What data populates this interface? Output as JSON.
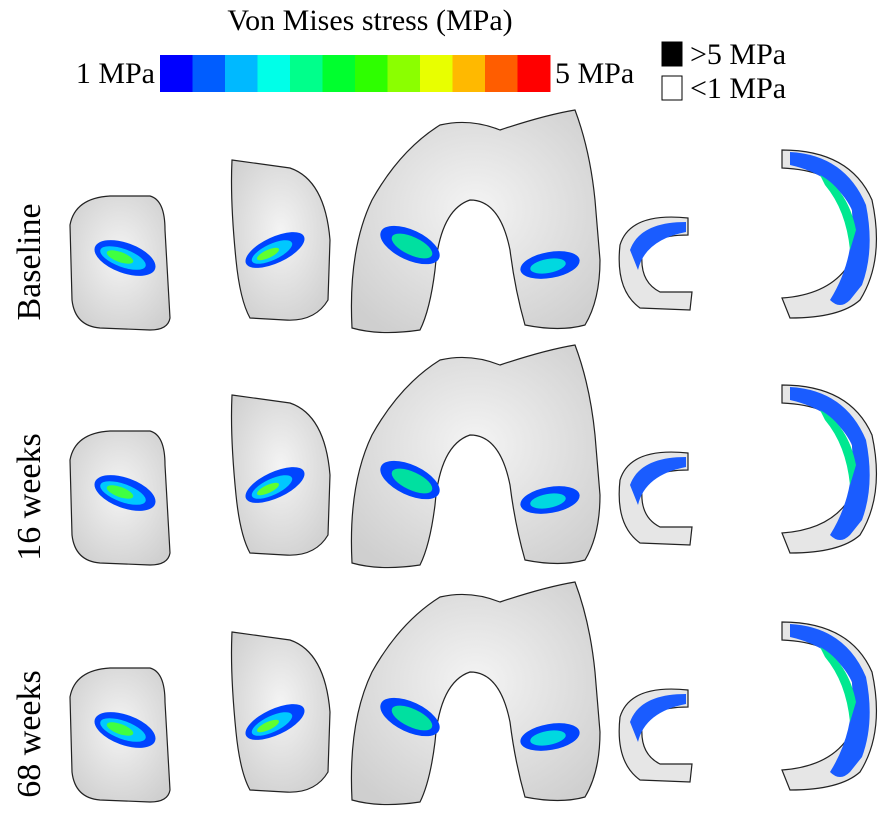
{
  "legend": {
    "title": "Von Mises stress (MPa)",
    "min_label": "1 MPa",
    "max_label": "5 MPa",
    "colors": [
      "#0000ff",
      "#005dff",
      "#00b9ff",
      "#00ffe8",
      "#00ff8b",
      "#00ff2e",
      "#2eff00",
      "#8bff00",
      "#e8ff00",
      "#ffb900",
      "#ff5d00",
      "#ff0000"
    ],
    "above_label": ">5 MPa",
    "above_color": "#000000",
    "below_label": "<1 MPa",
    "below_color": "#ffffff"
  },
  "rows": [
    {
      "label": "Baseline"
    },
    {
      "label": "16 weeks"
    },
    {
      "label": "68 weeks"
    }
  ]
}
